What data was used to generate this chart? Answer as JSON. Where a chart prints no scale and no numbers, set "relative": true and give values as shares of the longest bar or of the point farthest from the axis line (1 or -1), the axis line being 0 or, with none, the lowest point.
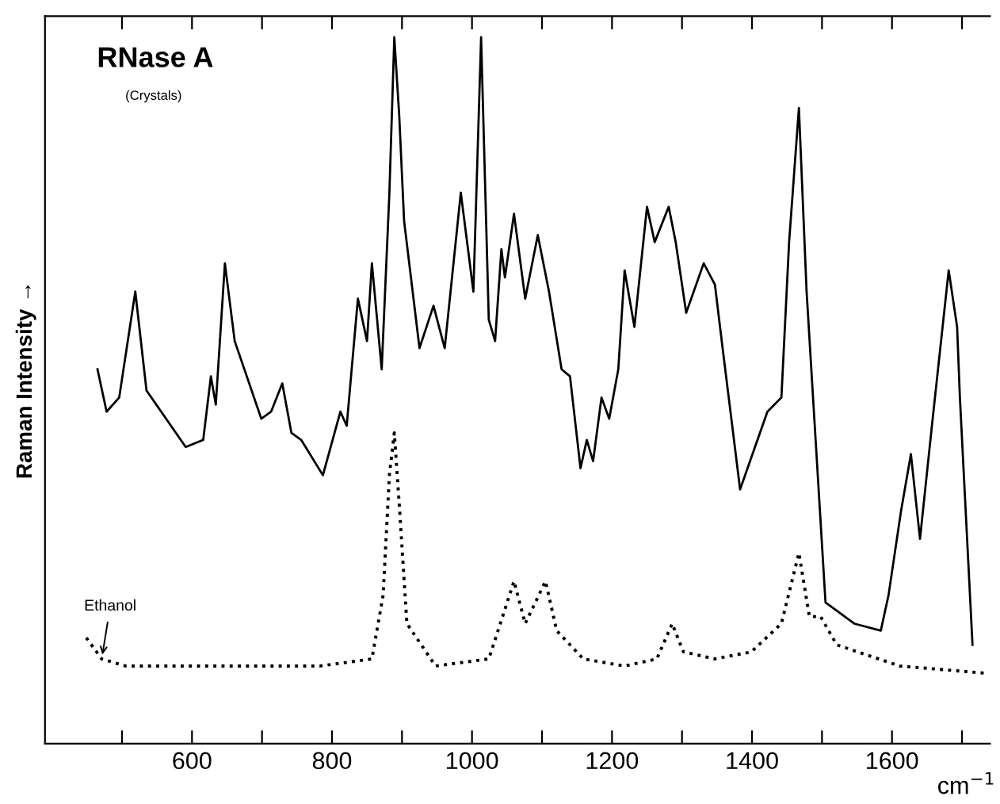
{
  "chart_data": {
    "type": "line",
    "relative": true,
    "ylabel": "Raman Intensity →",
    "xlabel": "cm$^{−1}$",
    "xlim": [
      390,
      1740
    ],
    "xticks": [
      {
        "value": 500,
        "label": null
      },
      600,
      {
        "value": 700,
        "label": null
      },
      800,
      {
        "value": 900,
        "label": null
      },
      1000,
      {
        "value": 1100,
        "label": null
      },
      1200,
      {
        "value": 1300,
        "label": null
      },
      1400,
      {
        "value": 1500,
        "label": null
      },
      1600,
      {
        "value": 1700,
        "label": null
      }
    ],
    "tick_labels": "x",
    "grid": false,
    "legend": false,
    "marker": "none",
    "annotations": [
      "RNase A",
      "(Crystals)",
      {
        "text": "Ethanol",
        "x": 471,
        "y": 0.12
      }
    ],
    "series": [
      {
        "color": "#000000",
        "line_style": "solid",
        "x": [
          465,
          478,
          496,
          519,
          535,
          591,
          616,
          627,
          634,
          647,
          661,
          699,
          713,
          729,
          742,
          756,
          787,
          812,
          821,
          837,
          850,
          857,
          871,
          882,
          889,
          896,
          903,
          925,
          945,
          961,
          984,
          1002,
          1013,
          1024,
          1033,
          1042,
          1047,
          1060,
          1076,
          1094,
          1110,
          1128,
          1140,
          1155,
          1164,
          1173,
          1185,
          1196,
          1209,
          1218,
          1232,
          1250,
          1261,
          1281,
          1291,
          1306,
          1331,
          1347,
          1358,
          1383,
          1422,
          1442,
          1453,
          1467,
          1478,
          1505,
          1546,
          1584,
          1595,
          1613,
          1627,
          1640,
          1657,
          1681,
          1693,
          1697,
          1715
        ],
        "values": [
          0.53,
          0.47,
          0.49,
          0.64,
          0.5,
          0.42,
          0.43,
          0.52,
          0.48,
          0.68,
          0.57,
          0.46,
          0.47,
          0.51,
          0.44,
          0.43,
          0.38,
          0.47,
          0.45,
          0.63,
          0.57,
          0.68,
          0.53,
          0.78,
          1.0,
          0.89,
          0.74,
          0.56,
          0.62,
          0.56,
          0.78,
          0.64,
          1.0,
          0.6,
          0.57,
          0.7,
          0.66,
          0.75,
          0.63,
          0.72,
          0.64,
          0.53,
          0.52,
          0.39,
          0.43,
          0.4,
          0.49,
          0.46,
          0.53,
          0.67,
          0.59,
          0.76,
          0.71,
          0.76,
          0.71,
          0.61,
          0.68,
          0.65,
          0.56,
          0.36,
          0.47,
          0.49,
          0.71,
          0.9,
          0.64,
          0.2,
          0.17,
          0.16,
          0.21,
          0.33,
          0.41,
          0.29,
          0.45,
          0.67,
          0.59,
          0.49,
          0.14
        ]
      },
      {
        "color": "#000000",
        "line_style": "dotted",
        "x": [
          449,
          471,
          505,
          647,
          783,
          857,
          873,
          882,
          889,
          896,
          907,
          948,
          1024,
          1047,
          1060,
          1076,
          1105,
          1121,
          1159,
          1218,
          1264,
          1286,
          1302,
          1347,
          1399,
          1442,
          1467,
          1482,
          1498,
          1521,
          1611,
          1731
        ],
        "values": [
          0.15,
          0.12,
          0.11,
          0.11,
          0.11,
          0.12,
          0.21,
          0.38,
          0.44,
          0.34,
          0.17,
          0.11,
          0.12,
          0.19,
          0.23,
          0.17,
          0.23,
          0.16,
          0.12,
          0.11,
          0.12,
          0.17,
          0.13,
          0.12,
          0.13,
          0.17,
          0.27,
          0.18,
          0.18,
          0.14,
          0.11,
          0.1
        ]
      }
    ]
  }
}
